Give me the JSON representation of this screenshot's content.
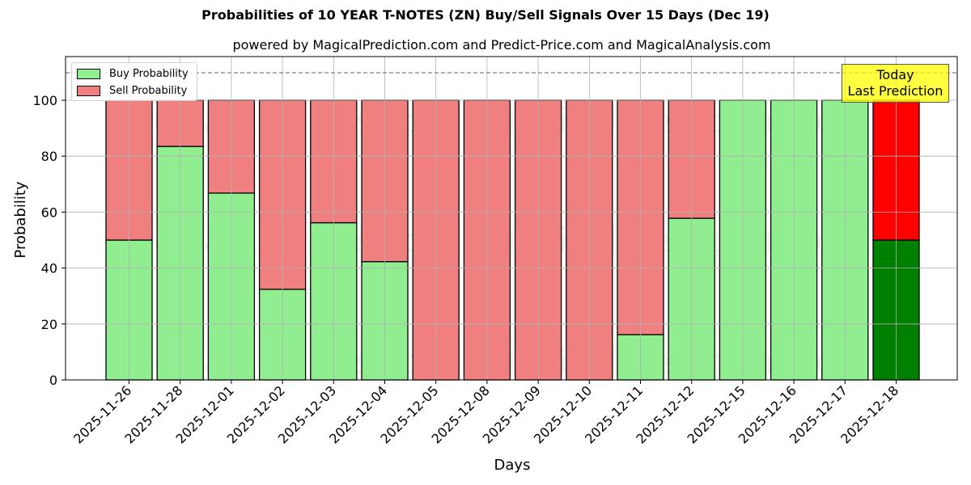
{
  "chart_data": {
    "type": "bar",
    "stacked": true,
    "title": "Probabilities of 10 YEAR T-NOTES (ZN) Buy/Sell Signals Over 15 Days (Dec 19)",
    "subtitle": "powered by MagicalPrediction.com and Predict-Price.com and MagicalAnalysis.com",
    "xlabel": "Days",
    "ylabel": "Probability",
    "ylim": [
      0,
      115
    ],
    "yticks": [
      0,
      20,
      40,
      60,
      80,
      100
    ],
    "grid": true,
    "legend_position": "upper left",
    "reference_line": {
      "y": 110,
      "style": "dashed",
      "color": "#808080"
    },
    "categories": [
      "2025-11-26",
      "2025-11-28",
      "2025-12-01",
      "2025-12-02",
      "2025-12-03",
      "2025-12-04",
      "2025-12-05",
      "2025-12-08",
      "2025-12-09",
      "2025-12-10",
      "2025-12-11",
      "2025-12-12",
      "2025-12-15",
      "2025-12-16",
      "2025-12-17",
      "2025-12-18"
    ],
    "series": [
      {
        "name": "Buy Probability",
        "color": "#90ee90",
        "values": [
          50.0,
          83.5,
          66.8,
          32.4,
          56.2,
          42.3,
          0,
          0,
          0,
          0,
          16.2,
          57.8,
          100,
          100,
          100,
          50.0
        ]
      },
      {
        "name": "Sell Probability",
        "color": "#f08080",
        "values": [
          50.0,
          16.5,
          33.2,
          67.6,
          43.8,
          57.7,
          100,
          100,
          100,
          100,
          83.8,
          42.2,
          0,
          0,
          0,
          50.0
        ]
      }
    ],
    "highlight": {
      "index": 15,
      "buy_color": "#008000",
      "sell_color": "#ff0000"
    },
    "annotation": {
      "line1": "Today",
      "line2": "Last Prediction",
      "background": "#ffff00"
    },
    "watermarks": [
      "MagicalAnalysis.com",
      "MagicalPrediction.com"
    ]
  }
}
